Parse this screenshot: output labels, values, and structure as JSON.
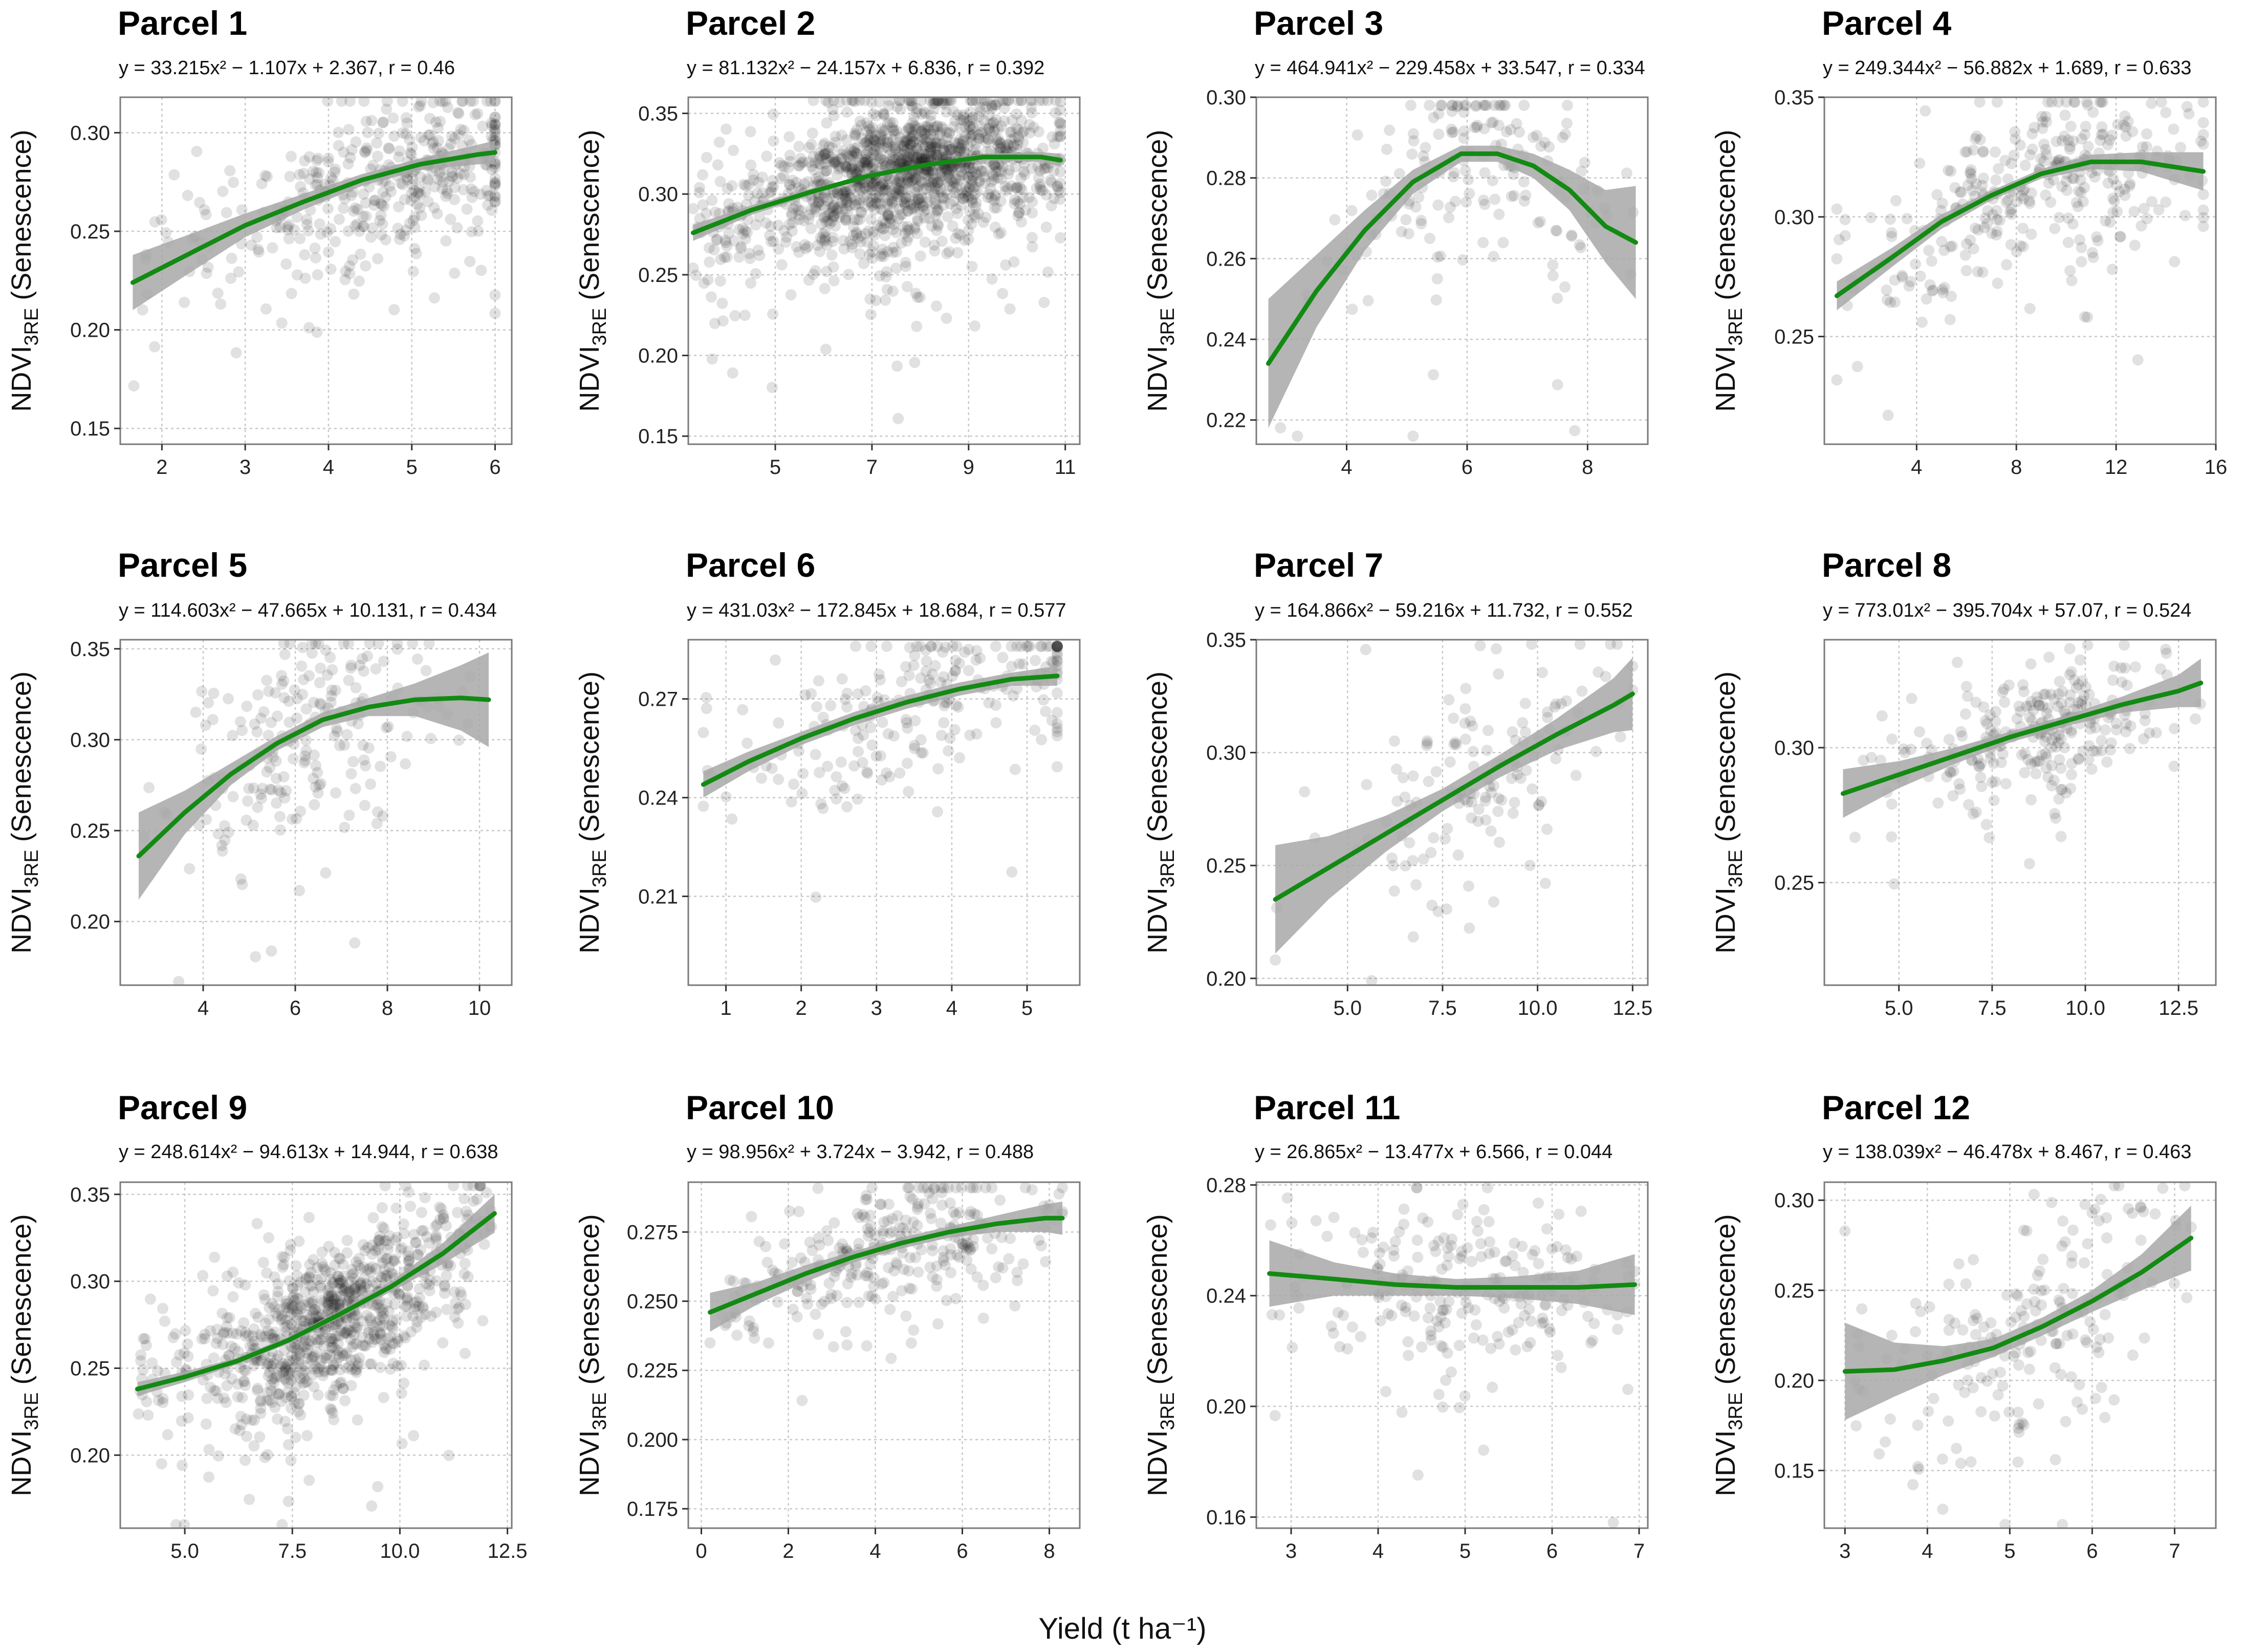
{
  "figure": {
    "xlabel": "Yield (t ha⁻¹)",
    "ylabel_main": "NDVI",
    "ylabel_sub": "3RE",
    "ylabel_suffix": " (Senescence)",
    "colors": {
      "point": "#1a1a1a",
      "fit_line": "#138a13",
      "ribbon": "#a8a8a8",
      "grid": "#c8c8c8",
      "frame": "#7a7a7a"
    }
  },
  "chart_data": [
    {
      "type": "scatter",
      "title": "Parcel 1",
      "equation": "y = 33.215x² − 1.107x + 2.367, r = 0.46",
      "xlim": [
        1.5,
        6.2
      ],
      "ylim": [
        0.142,
        0.318
      ],
      "xticks": [
        2,
        3,
        4,
        5,
        6
      ],
      "xtick_labels": [
        "2",
        "3",
        "4",
        "5",
        "6"
      ],
      "yticks": [
        0.15,
        0.2,
        0.25,
        0.3
      ],
      "ytick_labels": [
        "0.15",
        "0.20",
        "0.25",
        "0.30"
      ],
      "fit": {
        "x": [
          1.65,
          2.3,
          3.0,
          3.7,
          4.4,
          5.1,
          5.8,
          6.0
        ],
        "y": [
          0.224,
          0.238,
          0.253,
          0.265,
          0.276,
          0.284,
          0.289,
          0.29
        ]
      },
      "ci_halfwidth": [
        0.014,
        0.01,
        0.006,
        0.004,
        0.003,
        0.003,
        0.005,
        0.006
      ],
      "points": {
        "n": 420,
        "seed": 11,
        "center_x": 5.0,
        "spread_x": 0.9,
        "noise": 0.02
      }
    },
    {
      "type": "scatter",
      "title": "Parcel 2",
      "equation": "y = 81.132x² − 24.157x + 6.836, r = 0.392",
      "xlim": [
        3.2,
        11.3
      ],
      "ylim": [
        0.145,
        0.36
      ],
      "xticks": [
        5,
        7,
        9,
        11
      ],
      "xtick_labels": [
        "5",
        "7",
        "9",
        "11"
      ],
      "yticks": [
        0.15,
        0.2,
        0.25,
        0.3,
        0.35
      ],
      "ytick_labels": [
        "0.15",
        "0.20",
        "0.25",
        "0.30",
        "0.35"
      ],
      "fit": {
        "x": [
          3.3,
          4.5,
          5.7,
          6.9,
          8.1,
          9.3,
          10.5,
          10.9
        ],
        "y": [
          0.276,
          0.29,
          0.301,
          0.311,
          0.318,
          0.323,
          0.323,
          0.321
        ]
      },
      "ci_halfwidth": [
        0.005,
        0.003,
        0.002,
        0.001,
        0.001,
        0.002,
        0.003,
        0.004
      ],
      "points": {
        "n": 1400,
        "seed": 22,
        "center_x": 7.8,
        "spread_x": 1.4,
        "noise": 0.022
      }
    },
    {
      "type": "scatter",
      "title": "Parcel 3",
      "equation": "y = 464.941x² − 229.458x + 33.547, r = 0.334",
      "xlim": [
        2.5,
        9.0
      ],
      "ylim": [
        0.214,
        0.3
      ],
      "xticks": [
        4,
        6,
        8
      ],
      "xtick_labels": [
        "4",
        "6",
        "8"
      ],
      "yticks": [
        0.22,
        0.24,
        0.26,
        0.28,
        0.3
      ],
      "ytick_labels": [
        "0.22",
        "0.24",
        "0.26",
        "0.28",
        "0.30"
      ],
      "fit": {
        "x": [
          2.7,
          3.5,
          4.3,
          5.1,
          5.9,
          6.5,
          7.1,
          7.7,
          8.3,
          8.8
        ],
        "y": [
          0.234,
          0.252,
          0.267,
          0.279,
          0.286,
          0.286,
          0.283,
          0.277,
          0.268,
          0.264
        ]
      },
      "ci_halfwidth": [
        0.016,
        0.009,
        0.005,
        0.003,
        0.002,
        0.002,
        0.003,
        0.005,
        0.009,
        0.014
      ],
      "points": {
        "n": 170,
        "seed": 33,
        "center_x": 6.2,
        "spread_x": 1.0,
        "noise": 0.012
      }
    },
    {
      "type": "scatter",
      "title": "Parcel 4",
      "equation": "y = 249.344x² − 56.882x + 1.689, r = 0.633",
      "xlim": [
        0.3,
        16.0
      ],
      "ylim": [
        0.205,
        0.35
      ],
      "xticks": [
        4,
        8,
        12,
        16
      ],
      "xtick_labels": [
        "4",
        "8",
        "12",
        "16"
      ],
      "yticks": [
        0.25,
        0.3,
        0.35
      ],
      "ytick_labels": [
        "0.25",
        "0.30",
        "0.35"
      ],
      "fit": {
        "x": [
          0.8,
          3.0,
          5.0,
          7.0,
          9.0,
          11.0,
          13.0,
          15.5
        ],
        "y": [
          0.267,
          0.283,
          0.298,
          0.309,
          0.318,
          0.323,
          0.323,
          0.319
        ]
      },
      "ci_halfwidth": [
        0.006,
        0.004,
        0.003,
        0.002,
        0.002,
        0.003,
        0.004,
        0.008
      ],
      "points": {
        "n": 330,
        "seed": 44,
        "center_x": 9.0,
        "spread_x": 3.5,
        "noise": 0.018
      }
    },
    {
      "type": "scatter",
      "title": "Parcel 5",
      "equation": "y = 114.603x² − 47.665x + 10.131, r = 0.434",
      "xlim": [
        2.2,
        10.7
      ],
      "ylim": [
        0.165,
        0.355
      ],
      "xticks": [
        4,
        6,
        8,
        10
      ],
      "xtick_labels": [
        "4",
        "6",
        "8",
        "10"
      ],
      "yticks": [
        0.2,
        0.25,
        0.3,
        0.35
      ],
      "ytick_labels": [
        "0.20",
        "0.25",
        "0.30",
        "0.35"
      ],
      "fit": {
        "x": [
          2.6,
          3.6,
          4.6,
          5.6,
          6.6,
          7.6,
          8.6,
          9.6,
          10.2
        ],
        "y": [
          0.236,
          0.26,
          0.281,
          0.298,
          0.311,
          0.318,
          0.322,
          0.323,
          0.322
        ]
      },
      "ci_halfwidth": [
        0.024,
        0.012,
        0.006,
        0.004,
        0.004,
        0.005,
        0.009,
        0.018,
        0.026
      ],
      "points": {
        "n": 210,
        "seed": 55,
        "center_x": 6.2,
        "spread_x": 1.2,
        "noise": 0.03
      }
    },
    {
      "type": "scatter",
      "title": "Parcel 6",
      "equation": "y = 431.03x² − 172.845x + 18.684, r = 0.577",
      "xlim": [
        0.5,
        5.7
      ],
      "ylim": [
        0.183,
        0.288
      ],
      "xticks": [
        1,
        2,
        3,
        4,
        5
      ],
      "xtick_labels": [
        "1",
        "2",
        "3",
        "4",
        "5"
      ],
      "yticks": [
        0.21,
        0.24,
        0.27
      ],
      "ytick_labels": [
        "0.21",
        "0.24",
        "0.27"
      ],
      "fit": {
        "x": [
          0.7,
          1.3,
          2.0,
          2.7,
          3.4,
          4.1,
          4.8,
          5.4
        ],
        "y": [
          0.244,
          0.251,
          0.258,
          0.264,
          0.269,
          0.273,
          0.276,
          0.277
        ]
      },
      "ci_halfwidth": [
        0.004,
        0.003,
        0.002,
        0.002,
        0.002,
        0.002,
        0.002,
        0.003
      ],
      "points": {
        "n": 230,
        "seed": 66,
        "center_x": 3.9,
        "spread_x": 1.3,
        "noise": 0.012
      }
    },
    {
      "type": "scatter",
      "title": "Parcel 7",
      "equation": "y = 164.866x² − 59.216x + 11.732, r = 0.552",
      "xlim": [
        2.6,
        12.9
      ],
      "ylim": [
        0.197,
        0.35
      ],
      "xticks": [
        5.0,
        7.5,
        10.0,
        12.5
      ],
      "xtick_labels": [
        "5.0",
        "7.5",
        "10.0",
        "12.5"
      ],
      "yticks": [
        0.2,
        0.25,
        0.3,
        0.35
      ],
      "ytick_labels": [
        "0.20",
        "0.25",
        "0.30",
        "0.35"
      ],
      "fit": {
        "x": [
          3.1,
          4.5,
          6.0,
          7.5,
          9.0,
          10.5,
          12.0,
          12.5
        ],
        "y": [
          0.235,
          0.249,
          0.264,
          0.279,
          0.294,
          0.308,
          0.321,
          0.326
        ]
      },
      "ci_halfwidth": [
        0.024,
        0.014,
        0.008,
        0.005,
        0.005,
        0.007,
        0.012,
        0.016
      ],
      "points": {
        "n": 140,
        "seed": 77,
        "center_x": 8.5,
        "spread_x": 1.8,
        "noise": 0.025
      }
    },
    {
      "type": "scatter",
      "title": "Parcel 8",
      "equation": "y = 773.01x² − 395.704x + 57.07, r = 0.524",
      "xlim": [
        3.0,
        13.5
      ],
      "ylim": [
        0.212,
        0.34
      ],
      "xticks": [
        5.0,
        7.5,
        10.0,
        12.5
      ],
      "xtick_labels": [
        "5.0",
        "7.5",
        "10.0",
        "12.5"
      ],
      "yticks": [
        0.25,
        0.3
      ],
      "ytick_labels": [
        "0.25",
        "0.30"
      ],
      "fit": {
        "x": [
          3.5,
          5.0,
          6.5,
          8.0,
          9.5,
          11.0,
          12.5,
          13.1
        ],
        "y": [
          0.283,
          0.29,
          0.297,
          0.304,
          0.31,
          0.316,
          0.321,
          0.324
        ]
      },
      "ci_halfwidth": [
        0.009,
        0.005,
        0.003,
        0.002,
        0.002,
        0.003,
        0.006,
        0.009
      ],
      "points": {
        "n": 260,
        "seed": 88,
        "center_x": 8.8,
        "spread_x": 1.5,
        "noise": 0.012
      }
    },
    {
      "type": "scatter",
      "title": "Parcel 9",
      "equation": "y = 248.614x² − 94.613x + 14.944, r = 0.638",
      "xlim": [
        3.5,
        12.6
      ],
      "ylim": [
        0.158,
        0.357
      ],
      "xticks": [
        5.0,
        7.5,
        10.0,
        12.5
      ],
      "xtick_labels": [
        "5.0",
        "7.5",
        "10.0",
        "12.5"
      ],
      "yticks": [
        0.2,
        0.25,
        0.3,
        0.35
      ],
      "ytick_labels": [
        "0.20",
        "0.25",
        "0.30",
        "0.35"
      ],
      "fit": {
        "x": [
          3.9,
          5.0,
          6.2,
          7.4,
          8.6,
          9.8,
          11.0,
          12.2
        ],
        "y": [
          0.238,
          0.245,
          0.254,
          0.266,
          0.281,
          0.297,
          0.316,
          0.339
        ]
      },
      "ci_halfwidth": [
        0.004,
        0.003,
        0.002,
        0.002,
        0.002,
        0.003,
        0.006,
        0.011
      ],
      "points": {
        "n": 900,
        "seed": 99,
        "center_x": 8.4,
        "spread_x": 1.3,
        "noise": 0.022
      }
    },
    {
      "type": "scatter",
      "title": "Parcel 10",
      "equation": "y = 98.956x² + 3.724x − 3.942, r = 0.488",
      "xlim": [
        -0.3,
        8.7
      ],
      "ylim": [
        0.168,
        0.293
      ],
      "xticks": [
        0,
        2,
        4,
        6,
        8
      ],
      "xtick_labels": [
        "0",
        "2",
        "4",
        "6",
        "8"
      ],
      "yticks": [
        0.175,
        0.2,
        0.225,
        0.25,
        0.275
      ],
      "ytick_labels": [
        "0.175",
        "0.200",
        "0.225",
        "0.250",
        "0.275"
      ],
      "fit": {
        "x": [
          0.2,
          1.3,
          2.4,
          3.5,
          4.6,
          5.7,
          6.8,
          7.9,
          8.3
        ],
        "y": [
          0.246,
          0.253,
          0.26,
          0.266,
          0.271,
          0.275,
          0.278,
          0.28,
          0.28
        ]
      },
      "ci_halfwidth": [
        0.007,
        0.004,
        0.003,
        0.002,
        0.002,
        0.002,
        0.003,
        0.005,
        0.006
      ],
      "points": {
        "n": 300,
        "seed": 101,
        "center_x": 4.6,
        "spread_x": 1.6,
        "noise": 0.012
      }
    },
    {
      "type": "scatter",
      "title": "Parcel 11",
      "equation": "y = 26.865x² − 13.477x + 6.566, r = 0.044",
      "xlim": [
        2.6,
        7.1
      ],
      "ylim": [
        0.156,
        0.281
      ],
      "xticks": [
        3,
        4,
        5,
        6,
        7
      ],
      "xtick_labels": [
        "3",
        "4",
        "5",
        "6",
        "7"
      ],
      "yticks": [
        0.16,
        0.2,
        0.24,
        0.28
      ],
      "ytick_labels": [
        "0.16",
        "0.20",
        "0.24",
        "0.28"
      ],
      "fit": {
        "x": [
          2.75,
          3.5,
          4.2,
          4.9,
          5.6,
          6.3,
          6.95
        ],
        "y": [
          0.248,
          0.246,
          0.244,
          0.243,
          0.243,
          0.243,
          0.244
        ]
      },
      "ci_halfwidth": [
        0.012,
        0.006,
        0.004,
        0.003,
        0.004,
        0.006,
        0.011
      ],
      "points": {
        "n": 230,
        "seed": 111,
        "center_x": 5.0,
        "spread_x": 0.8,
        "noise": 0.016
      }
    },
    {
      "type": "scatter",
      "title": "Parcel 12",
      "equation": "y = 138.039x² − 46.478x + 8.467, r = 0.463",
      "xlim": [
        2.75,
        7.5
      ],
      "ylim": [
        0.118,
        0.31
      ],
      "xticks": [
        3,
        4,
        5,
        6,
        7
      ],
      "xtick_labels": [
        "3",
        "4",
        "5",
        "6",
        "7"
      ],
      "yticks": [
        0.15,
        0.2,
        0.25,
        0.3
      ],
      "ytick_labels": [
        "0.15",
        "0.20",
        "0.25",
        "0.30"
      ],
      "fit": {
        "x": [
          3.0,
          3.6,
          4.2,
          4.8,
          5.4,
          6.0,
          6.6,
          7.2
        ],
        "y": [
          0.205,
          0.206,
          0.211,
          0.218,
          0.23,
          0.244,
          0.26,
          0.279
        ]
      },
      "ci_halfwidth": [
        0.027,
        0.015,
        0.008,
        0.005,
        0.005,
        0.006,
        0.01,
        0.018
      ],
      "points": {
        "n": 200,
        "seed": 121,
        "center_x": 5.2,
        "spread_x": 0.8,
        "noise": 0.03
      }
    }
  ]
}
